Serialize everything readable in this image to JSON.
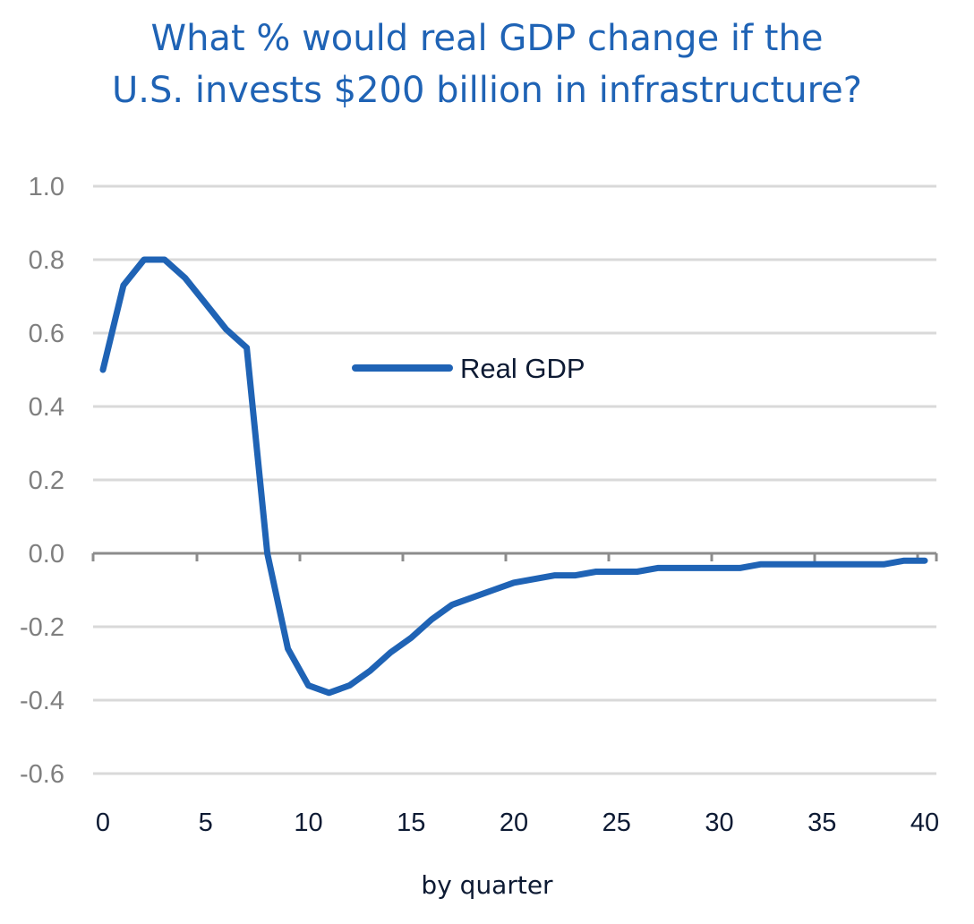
{
  "chart_data": {
    "type": "line",
    "title_lines": [
      "What % would real GDP change if the",
      "U.S. invests $200 billion in infrastructure?"
    ],
    "xlabel": "by quarter",
    "ylabel": "",
    "xlim": [
      0,
      40
    ],
    "ylim": [
      -0.6,
      1.0
    ],
    "x_ticks": [
      0,
      5,
      10,
      15,
      20,
      25,
      30,
      35,
      40
    ],
    "y_ticks": [
      1.0,
      0.8,
      0.6,
      0.4,
      0.2,
      0.0,
      -0.2,
      -0.4,
      -0.6
    ],
    "y_tick_labels": [
      "1.0",
      "0.8",
      "0.6",
      "0.4",
      "0.2",
      "0.0",
      "-0.2",
      "-0.4",
      "-0.6"
    ],
    "grid": true,
    "legend_placement": "center-left",
    "series": [
      {
        "name": "Real GDP",
        "color": "#1f63b5",
        "x": [
          0,
          1,
          2,
          3,
          4,
          5,
          6,
          7,
          8,
          9,
          10,
          11,
          12,
          13,
          14,
          15,
          16,
          17,
          18,
          19,
          20,
          21,
          22,
          23,
          24,
          25,
          26,
          27,
          28,
          29,
          30,
          31,
          32,
          33,
          34,
          35,
          36,
          37,
          38,
          39,
          40
        ],
        "values": [
          0.5,
          0.73,
          0.8,
          0.8,
          0.75,
          0.68,
          0.61,
          0.56,
          0.0,
          -0.26,
          -0.36,
          -0.38,
          -0.36,
          -0.32,
          -0.27,
          -0.23,
          -0.18,
          -0.14,
          -0.12,
          -0.1,
          -0.08,
          -0.07,
          -0.06,
          -0.06,
          -0.05,
          -0.05,
          -0.05,
          -0.04,
          -0.04,
          -0.04,
          -0.04,
          -0.04,
          -0.03,
          -0.03,
          -0.03,
          -0.03,
          -0.03,
          -0.03,
          -0.03,
          -0.02,
          -0.02
        ]
      }
    ]
  }
}
